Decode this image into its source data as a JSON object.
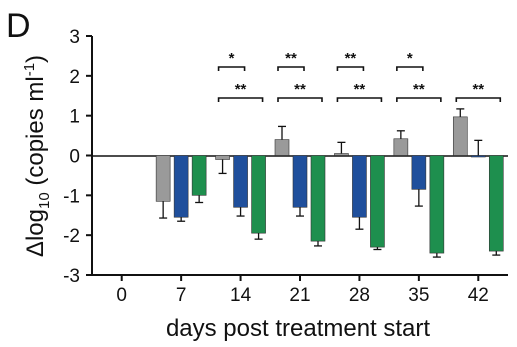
{
  "panel_label": "D",
  "chart_data": {
    "type": "bar",
    "xlabel": "days post treatment start",
    "ylabel_prefix": "Δlog",
    "ylabel_subscript": "10",
    "ylabel_unit_open": " (copies ml",
    "ylabel_unit_sup": "-1",
    "ylabel_unit_close": ")",
    "ylim": [
      -3,
      3
    ],
    "yticks": [
      3,
      2,
      1,
      0,
      -1,
      -2,
      -3
    ],
    "categories": [
      "0",
      "7",
      "14",
      "21",
      "28",
      "35",
      "42"
    ],
    "colors": [
      "#9a9a9a",
      "#1f4f9c",
      "#1e8f4e"
    ],
    "series": [
      {
        "values": [
          null,
          -1.15,
          -0.1,
          0.4,
          0.05,
          0.42,
          0.97
        ],
        "errors": [
          null,
          0.42,
          0.35,
          0.33,
          0.28,
          0.2,
          0.2
        ]
      },
      {
        "values": [
          null,
          -1.55,
          -1.3,
          -1.3,
          -1.55,
          -0.85,
          0.0
        ],
        "errors": [
          null,
          0.1,
          0.22,
          0.22,
          0.3,
          0.42,
          0.38
        ]
      },
      {
        "values": [
          null,
          -1.0,
          -1.95,
          -2.15,
          -2.3,
          -2.45,
          -2.4
        ],
        "errors": [
          null,
          0.18,
          0.15,
          0.12,
          0.06,
          0.1,
          0.1
        ]
      }
    ],
    "significance": [
      {
        "category": "14",
        "pair": "grey-blue",
        "label": "*"
      },
      {
        "category": "14",
        "pair": "grey-green",
        "label": "**"
      },
      {
        "category": "21",
        "pair": "grey-blue",
        "label": "**"
      },
      {
        "category": "21",
        "pair": "grey-green",
        "label": "**"
      },
      {
        "category": "28",
        "pair": "grey-blue",
        "label": "**"
      },
      {
        "category": "28",
        "pair": "grey-green",
        "label": "**"
      },
      {
        "category": "35",
        "pair": "grey-blue",
        "label": "*"
      },
      {
        "category": "35",
        "pair": "grey-green",
        "label": "**"
      },
      {
        "category": "42",
        "pair": "grey-green",
        "label": "**"
      }
    ]
  }
}
